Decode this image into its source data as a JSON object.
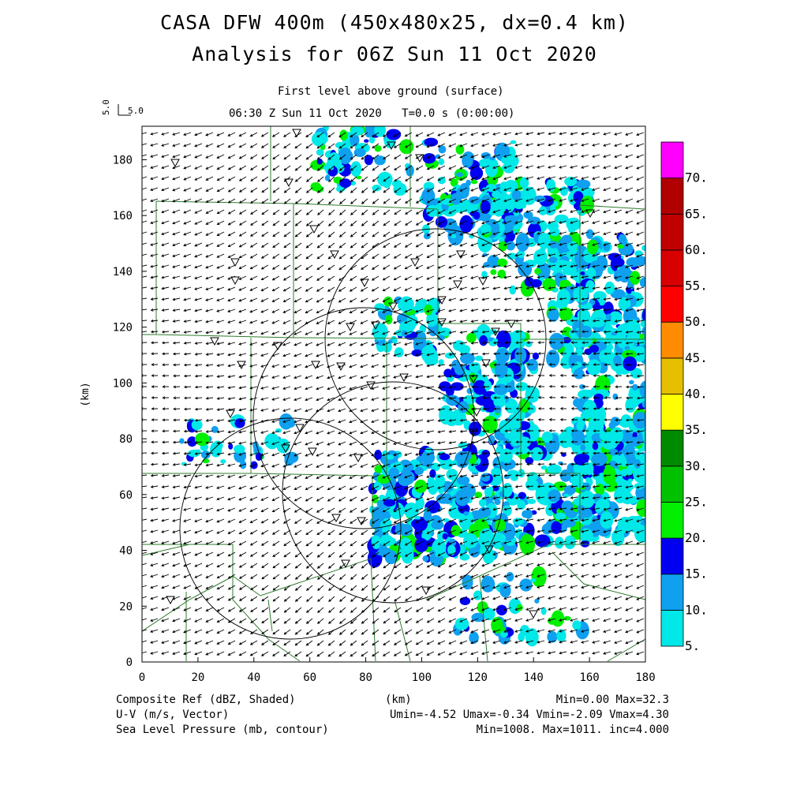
{
  "header": {
    "title_line1": "CASA DFW 400m (450x480x25, dx=0.4 km)",
    "title_line2": "Analysis for 06Z Sun 11 Oct 2020",
    "level_label": "First level above ground (surface)",
    "time_label": "06:30 Z Sun 11 Oct 2020   T=0.0 s (0:00:00)",
    "vector_scale_y": "5.0",
    "vector_scale_x": "5.0"
  },
  "axes": {
    "x_label": "(km)",
    "y_label": "(km)",
    "x_ticks": [
      "0",
      "20",
      "40",
      "60",
      "80",
      "100",
      "120",
      "140",
      "160",
      "180"
    ],
    "y_ticks": [
      "0",
      "20",
      "40",
      "60",
      "80",
      "100",
      "120",
      "140",
      "160",
      "180"
    ],
    "xlim": [
      0,
      180
    ],
    "ylim": [
      0,
      192
    ]
  },
  "colorbar": {
    "labels": [
      "5.",
      "10.",
      "15.",
      "20.",
      "25.",
      "30.",
      "35.",
      "40.",
      "45.",
      "50.",
      "55.",
      "60.",
      "65.",
      "70."
    ],
    "colors": [
      "#00e8e8",
      "#0fa0f0",
      "#0000f0",
      "#00f000",
      "#00c000",
      "#008a00",
      "#ffff00",
      "#e6bf00",
      "#ff8c00",
      "#ff0000",
      "#d80000",
      "#c00000",
      "#b00000",
      "#ff00ff"
    ]
  },
  "footer": {
    "line1_left": "Composite Ref (dBZ, Shaded)",
    "line1_mid": "(km)",
    "line1_right": "Min=0.00 Max=32.3",
    "line2_left": "U-V (m/s, Vector)",
    "line2_right": "Umin=-4.52 Umax=-0.34 Vmin=-2.09 Vmax=4.30",
    "line3_left": "Sea Level Pressure (mb, contour)",
    "line3_right": "Min=1008. Max=1011. inc=4.000"
  },
  "colors": {
    "county_lines": "#2e7d2e",
    "vectors": "#000000",
    "range_rings": "#000000"
  }
}
